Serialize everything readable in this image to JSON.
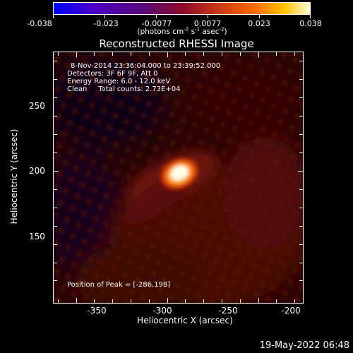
{
  "colorbar": {
    "ticks": [
      "-0.038",
      "-0.023",
      "-0.0077",
      "0.0077",
      "0.023",
      "0.038"
    ],
    "units_main": "(photons cm",
    "units_exp1": "-2",
    "units_mid1": " s",
    "units_exp2": "-1",
    "units_mid2": " asec",
    "units_exp3": "-2",
    "units_end": ")"
  },
  "title": "Reconstructed RHESSI Image",
  "info": {
    "time": "8-Nov-2014 23:36:04.000 to 23:39:52.000",
    "detectors": "Detectors: 3F 6F 9F, Att 0",
    "energy": "Energy Range: 6.0 - 12.0 keV",
    "clean": "Clean     Total counts: 2.73E+04",
    "peak": "Position of Peak = [-286,198]"
  },
  "axes": {
    "xlabel": "Heliocentric X (arcsec)",
    "ylabel": "Heliocentric Y (arcsec)",
    "xticks": [
      "-350",
      "-300",
      "-250",
      "-200"
    ],
    "yticks": [
      "250",
      "200",
      "150"
    ]
  },
  "timestamp": "19-May-2022 06:48"
}
